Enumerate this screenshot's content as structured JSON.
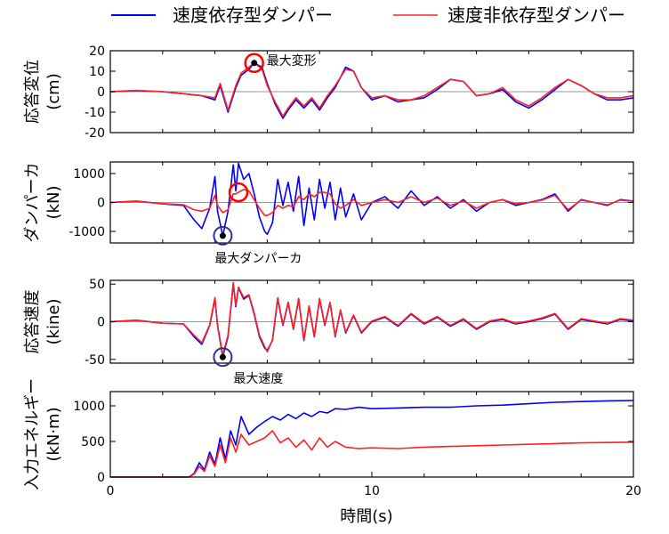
{
  "legend": {
    "items": [
      {
        "label": "速度依存型ダンパー",
        "color": "#0000ff"
      },
      {
        "label": "速度非依存型ダンパー",
        "color": "#ff2020"
      }
    ]
  },
  "xlabel": "時間(s)",
  "colors": {
    "dependent": "#0000ff",
    "independent": "#ff2020",
    "marker_red": "#ff0000",
    "marker_blue": "#303090",
    "zero_line": "#999999"
  },
  "chart_data": [
    {
      "type": "line",
      "id": "displacement",
      "ylabel_line1": "応答変位",
      "ylabel_line2": "(cm)",
      "xlim": [
        0,
        20
      ],
      "ylim": [
        -20,
        20
      ],
      "yticks": [
        -20,
        -10,
        0,
        10,
        20
      ],
      "xticks": [
        0,
        10,
        20
      ],
      "show_xtick_labels": false,
      "annotation": {
        "label": "最大変形",
        "x": 5.5,
        "y": 14,
        "color": "red"
      },
      "series": [
        {
          "key": "dependent",
          "x": [
            0,
            1,
            2,
            2.8,
            3.5,
            4.0,
            4.2,
            4.5,
            4.8,
            5.0,
            5.3,
            5.5,
            5.8,
            6.0,
            6.3,
            6.6,
            6.8,
            7.1,
            7.4,
            7.7,
            8.0,
            8.3,
            8.6,
            9.0,
            9.3,
            9.6,
            10.0,
            10.5,
            11.0,
            11.5,
            12.0,
            12.5,
            13.0,
            13.5,
            14.0,
            14.5,
            15.0,
            15.5,
            16.0,
            16.5,
            17.0,
            17.5,
            18.0,
            18.5,
            19.0,
            19.5,
            20.0
          ],
          "y": [
            0,
            0.5,
            0,
            -1,
            -2,
            -4,
            3,
            -10,
            2,
            8,
            11,
            14,
            12,
            4,
            -6,
            -13,
            -9,
            -4,
            -8,
            -4,
            -9,
            -3,
            2,
            12,
            10,
            2,
            -4,
            -2,
            -5,
            -4,
            -3,
            1,
            6,
            5,
            -2,
            -1,
            1,
            -5,
            -8,
            -4,
            1,
            6,
            3,
            -1,
            -4,
            -4,
            -3
          ]
        },
        {
          "key": "independent",
          "x": [
            0,
            1,
            2,
            2.8,
            3.5,
            4.0,
            4.2,
            4.5,
            4.8,
            5.0,
            5.3,
            5.5,
            5.8,
            6.0,
            6.3,
            6.6,
            6.8,
            7.1,
            7.4,
            7.7,
            8.0,
            8.3,
            8.6,
            9.0,
            9.3,
            9.6,
            10.0,
            10.5,
            11.0,
            11.5,
            12.0,
            12.5,
            13.0,
            13.5,
            14.0,
            14.5,
            15.0,
            15.5,
            16.0,
            16.5,
            17.0,
            17.5,
            18.0,
            18.5,
            19.0,
            19.5,
            20.0
          ],
          "y": [
            0,
            0.6,
            0,
            -1,
            -2,
            -3,
            4,
            -9,
            3,
            9,
            12,
            14,
            11,
            3,
            -5,
            -12,
            -8,
            -3,
            -7,
            -3,
            -8,
            -2,
            3,
            11,
            10,
            2,
            -3,
            -2,
            -4,
            -4,
            -2,
            2,
            6,
            5,
            -2,
            -1,
            2,
            -4,
            -7,
            -3,
            2,
            6,
            3,
            -1,
            -3,
            -3,
            -2
          ]
        }
      ]
    },
    {
      "type": "line",
      "id": "damper_force",
      "ylabel_line1": "ダンパーカ",
      "ylabel_line2": "(kN)",
      "xlim": [
        0,
        20
      ],
      "ylim": [
        -1400,
        1400
      ],
      "yticks": [
        -1000,
        0,
        1000
      ],
      "xticks": [
        0,
        10,
        20
      ],
      "show_xtick_labels": false,
      "annotation": {
        "label": "最大ダンパーカ",
        "x": 4.3,
        "y": -1150,
        "color": "blue"
      },
      "series": [
        {
          "key": "dependent",
          "x": [
            0,
            1,
            2,
            2.8,
            3.2,
            3.5,
            3.8,
            4.0,
            4.1,
            4.3,
            4.5,
            4.7,
            4.8,
            4.9,
            5.1,
            5.3,
            5.5,
            5.7,
            5.9,
            6.0,
            6.2,
            6.4,
            6.6,
            6.8,
            7.0,
            7.2,
            7.4,
            7.6,
            7.8,
            8.0,
            8.2,
            8.4,
            8.6,
            8.8,
            9.0,
            9.3,
            9.6,
            10.0,
            10.5,
            11.0,
            11.5,
            12.0,
            12.5,
            13.0,
            13.5,
            14.0,
            14.5,
            15.0,
            15.5,
            16.0,
            16.5,
            17.0,
            17.5,
            18.0,
            18.5,
            19.0,
            19.5,
            20.0
          ],
          "y": [
            0,
            50,
            -50,
            -100,
            -600,
            -900,
            -200,
            900,
            -300,
            -1150,
            -300,
            1300,
            400,
            1350,
            800,
            1000,
            300,
            -500,
            -1000,
            -1100,
            -700,
            800,
            -100,
            700,
            -300,
            900,
            -800,
            500,
            -600,
            800,
            -200,
            700,
            -600,
            500,
            -500,
            300,
            -600,
            0,
            200,
            -200,
            400,
            -100,
            200,
            -200,
            100,
            -300,
            0,
            100,
            -100,
            0,
            100,
            300,
            -300,
            100,
            0,
            -100,
            100,
            50
          ]
        },
        {
          "key": "independent",
          "x": [
            0,
            1,
            2,
            2.8,
            3.2,
            3.5,
            3.8,
            4.0,
            4.1,
            4.3,
            4.5,
            4.7,
            4.8,
            4.9,
            5.1,
            5.3,
            5.5,
            5.7,
            5.9,
            6.0,
            6.2,
            6.4,
            6.6,
            6.8,
            7.0,
            7.2,
            7.4,
            7.6,
            7.8,
            8.0,
            8.2,
            8.4,
            8.6,
            8.8,
            9.0,
            9.3,
            9.6,
            10.0,
            10.5,
            11.0,
            11.5,
            12.0,
            12.5,
            13.0,
            13.5,
            14.0,
            14.5,
            15.0,
            15.5,
            16.0,
            16.5,
            17.0,
            17.5,
            18.0,
            18.5,
            19.0,
            19.5,
            20.0
          ],
          "y": [
            0,
            40,
            -40,
            -80,
            -250,
            -300,
            -200,
            250,
            -100,
            -350,
            -250,
            300,
            300,
            350,
            450,
            400,
            100,
            -200,
            -450,
            -450,
            -350,
            -100,
            -200,
            -100,
            -150,
            200,
            100,
            300,
            200,
            350,
            350,
            300,
            -50,
            -200,
            -100,
            100,
            -100,
            0,
            100,
            0,
            200,
            0,
            150,
            -100,
            50,
            -200,
            0,
            100,
            -50,
            0,
            80,
            250,
            -250,
            80,
            0,
            -80,
            80,
            40
          ]
        }
      ]
    },
    {
      "type": "line",
      "id": "velocity",
      "ylabel_line1": "応答速度",
      "ylabel_line2": "(kine)",
      "xlim": [
        0,
        20
      ],
      "ylim": [
        -55,
        55
      ],
      "yticks": [
        -50,
        0,
        50
      ],
      "xticks": [
        0,
        10,
        20
      ],
      "show_xtick_labels": false,
      "annotation": {
        "label": "最大速度",
        "x": 4.3,
        "y": -47,
        "color": "blue"
      },
      "series": [
        {
          "key": "dependent",
          "x": [
            0,
            1,
            2,
            2.8,
            3.2,
            3.5,
            3.8,
            4.0,
            4.1,
            4.3,
            4.5,
            4.7,
            4.8,
            4.9,
            5.1,
            5.3,
            5.5,
            5.7,
            5.9,
            6.0,
            6.2,
            6.4,
            6.6,
            6.8,
            7.0,
            7.2,
            7.4,
            7.6,
            7.8,
            8.0,
            8.2,
            8.4,
            8.6,
            8.8,
            9.0,
            9.3,
            9.6,
            10.0,
            10.5,
            11.0,
            11.5,
            12.0,
            12.5,
            13.0,
            13.5,
            14.0,
            14.5,
            15.0,
            15.5,
            16.0,
            16.5,
            17.0,
            17.5,
            18.0,
            18.5,
            19.0,
            19.5,
            20.0
          ],
          "y": [
            0,
            2,
            -2,
            -3,
            -20,
            -30,
            -5,
            30,
            -5,
            -47,
            -20,
            50,
            20,
            45,
            30,
            35,
            10,
            -20,
            -35,
            -38,
            -25,
            30,
            -5,
            25,
            -10,
            30,
            -25,
            20,
            -20,
            30,
            -5,
            25,
            -20,
            15,
            -15,
            8,
            -15,
            0,
            6,
            -6,
            10,
            -3,
            6,
            -6,
            3,
            -10,
            0,
            3,
            -3,
            0,
            4,
            10,
            -10,
            3,
            0,
            -3,
            3,
            1
          ]
        },
        {
          "key": "independent",
          "x": [
            0,
            1,
            2,
            2.8,
            3.2,
            3.5,
            3.8,
            4.0,
            4.1,
            4.3,
            4.5,
            4.7,
            4.8,
            4.9,
            5.1,
            5.3,
            5.5,
            5.7,
            5.9,
            6.0,
            6.2,
            6.4,
            6.6,
            6.8,
            7.0,
            7.2,
            7.4,
            7.6,
            7.8,
            8.0,
            8.2,
            8.4,
            8.6,
            8.8,
            9.0,
            9.3,
            9.6,
            10.0,
            10.5,
            11.0,
            11.5,
            12.0,
            12.5,
            13.0,
            13.5,
            14.0,
            14.5,
            15.0,
            15.5,
            16.0,
            16.5,
            17.0,
            17.5,
            18.0,
            18.5,
            19.0,
            19.5,
            20.0
          ],
          "y": [
            0,
            2,
            -2,
            -3,
            -18,
            -28,
            -4,
            32,
            -4,
            -44,
            -18,
            52,
            22,
            46,
            32,
            36,
            12,
            -18,
            -33,
            -40,
            -24,
            32,
            -4,
            26,
            -9,
            31,
            -24,
            21,
            -19,
            31,
            -4,
            26,
            -19,
            16,
            -14,
            9,
            -14,
            1,
            7,
            -5,
            11,
            -2,
            7,
            -5,
            4,
            -9,
            1,
            4,
            -2,
            1,
            5,
            11,
            -9,
            4,
            1,
            -2,
            4,
            2
          ]
        }
      ]
    },
    {
      "type": "line",
      "id": "input_energy",
      "ylabel_line1": "入力エネルギー",
      "ylabel_line2": "(kN·m)",
      "xlim": [
        0,
        20
      ],
      "ylim": [
        0,
        1200
      ],
      "yticks": [
        0,
        500,
        1000
      ],
      "xticks": [
        0,
        10,
        20
      ],
      "show_xtick_labels": true,
      "series": [
        {
          "key": "dependent",
          "x": [
            0,
            2,
            3,
            3.2,
            3.4,
            3.6,
            3.8,
            4.0,
            4.2,
            4.4,
            4.6,
            4.8,
            5.0,
            5.3,
            5.6,
            5.9,
            6.2,
            6.5,
            6.8,
            7.1,
            7.4,
            7.7,
            8.0,
            8.3,
            8.6,
            9.0,
            9.5,
            10.0,
            11,
            12,
            13,
            14,
            15,
            16,
            17,
            18,
            19,
            20
          ],
          "y": [
            0,
            0,
            0,
            50,
            200,
            100,
            350,
            180,
            550,
            250,
            650,
            450,
            850,
            600,
            700,
            780,
            850,
            800,
            880,
            820,
            900,
            850,
            920,
            900,
            960,
            950,
            980,
            960,
            970,
            980,
            980,
            1000,
            1010,
            1030,
            1050,
            1060,
            1070,
            1075
          ]
        },
        {
          "key": "independent",
          "x": [
            0,
            2,
            3,
            3.2,
            3.4,
            3.6,
            3.8,
            4.0,
            4.2,
            4.4,
            4.6,
            4.8,
            5.0,
            5.3,
            5.6,
            5.9,
            6.2,
            6.5,
            6.8,
            7.1,
            7.4,
            7.7,
            8.0,
            8.3,
            8.6,
            9.0,
            9.5,
            10.0,
            11,
            12,
            13,
            14,
            15,
            16,
            17,
            18,
            19,
            20
          ],
          "y": [
            0,
            0,
            0,
            40,
            150,
            80,
            300,
            150,
            450,
            200,
            550,
            350,
            600,
            450,
            500,
            550,
            650,
            480,
            550,
            420,
            520,
            380,
            550,
            420,
            500,
            420,
            400,
            410,
            400,
            420,
            430,
            440,
            450,
            460,
            470,
            480,
            485,
            490
          ]
        }
      ]
    }
  ]
}
